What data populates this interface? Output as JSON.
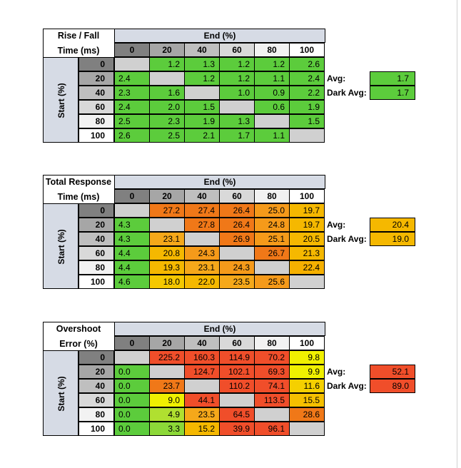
{
  "colors": {
    "header_blue": "#d6dbe5",
    "diagonal_gray": "#d0d0d0",
    "green": "#5ccc3c",
    "yellow_green": "#b0e030",
    "yellow": "#f0f000",
    "gold": "#f5b800",
    "orange": "#f59a1a",
    "dark_orange": "#f07818",
    "red_orange": "#f04e2a"
  },
  "chart_data": [
    {
      "type": "table",
      "title_line1": "Rise / Fall",
      "title_line2": "Time (ms)",
      "col_header": "End (%)",
      "row_header": "Start (%)",
      "columns": [
        "0",
        "20",
        "40",
        "60",
        "80",
        "100"
      ],
      "rows": [
        "0",
        "20",
        "40",
        "60",
        "80",
        "100"
      ],
      "values": [
        [
          "",
          "1.2",
          "1.3",
          "1.2",
          "1.2",
          "2.6"
        ],
        [
          "2.4",
          "",
          "1.2",
          "1.2",
          "1.1",
          "2.4"
        ],
        [
          "2.3",
          "1.6",
          "",
          "1.0",
          "0.9",
          "2.2"
        ],
        [
          "2.4",
          "2.0",
          "1.5",
          "",
          "0.6",
          "1.9"
        ],
        [
          "2.5",
          "2.3",
          "1.9",
          "1.3",
          "",
          "1.5"
        ],
        [
          "2.6",
          "2.5",
          "2.1",
          "1.7",
          "1.1",
          ""
        ]
      ],
      "cell_colors": [
        [
          "#d0d0d0",
          "#5ccc3c",
          "#5ccc3c",
          "#5ccc3c",
          "#5ccc3c",
          "#5ccc3c"
        ],
        [
          "#5ccc3c",
          "#d0d0d0",
          "#5ccc3c",
          "#5ccc3c",
          "#5ccc3c",
          "#5ccc3c"
        ],
        [
          "#5ccc3c",
          "#5ccc3c",
          "#d0d0d0",
          "#5ccc3c",
          "#5ccc3c",
          "#5ccc3c"
        ],
        [
          "#5ccc3c",
          "#5ccc3c",
          "#5ccc3c",
          "#d0d0d0",
          "#5ccc3c",
          "#5ccc3c"
        ],
        [
          "#5ccc3c",
          "#5ccc3c",
          "#5ccc3c",
          "#5ccc3c",
          "#d0d0d0",
          "#5ccc3c"
        ],
        [
          "#5ccc3c",
          "#5ccc3c",
          "#5ccc3c",
          "#5ccc3c",
          "#5ccc3c",
          "#d0d0d0"
        ]
      ],
      "avg_label": "Avg:",
      "avg_value": "1.7",
      "avg_color": "#5ccc3c",
      "dark_avg_label": "Dark Avg:",
      "dark_avg_value": "1.7",
      "dark_avg_color": "#5ccc3c"
    },
    {
      "type": "table",
      "title_line1": "Total Response",
      "title_line2": "Time (ms)",
      "col_header": "End (%)",
      "row_header": "Start (%)",
      "columns": [
        "0",
        "20",
        "40",
        "60",
        "80",
        "100"
      ],
      "rows": [
        "0",
        "20",
        "40",
        "60",
        "80",
        "100"
      ],
      "values": [
        [
          "",
          "27.2",
          "27.4",
          "26.4",
          "25.0",
          "19.7"
        ],
        [
          "4.3",
          "",
          "27.8",
          "26.4",
          "24.8",
          "19.7"
        ],
        [
          "4.3",
          "23.1",
          "",
          "26.9",
          "25.1",
          "20.5"
        ],
        [
          "4.4",
          "20.8",
          "24.3",
          "",
          "26.7",
          "21.3"
        ],
        [
          "4.4",
          "19.3",
          "23.1",
          "24.3",
          "",
          "22.4"
        ],
        [
          "4.6",
          "18.0",
          "22.0",
          "23.5",
          "25.6",
          ""
        ]
      ],
      "cell_colors": [
        [
          "#d0d0d0",
          "#f07818",
          "#f07818",
          "#f07818",
          "#f59a1a",
          "#f5b800"
        ],
        [
          "#5ccc3c",
          "#d0d0d0",
          "#f07818",
          "#f07818",
          "#f59a1a",
          "#f5b800"
        ],
        [
          "#5ccc3c",
          "#f5a81a",
          "#d0d0d0",
          "#f07818",
          "#f59a1a",
          "#f5b800"
        ],
        [
          "#5ccc3c",
          "#f5b800",
          "#f59a1a",
          "#d0d0d0",
          "#f07818",
          "#f5b800"
        ],
        [
          "#5ccc3c",
          "#f5b800",
          "#f5a81a",
          "#f59a1a",
          "#d0d0d0",
          "#f5b000"
        ],
        [
          "#5ccc3c",
          "#f5c800",
          "#f5b800",
          "#f5a81a",
          "#f59a1a",
          "#d0d0d0"
        ]
      ],
      "avg_label": "Avg:",
      "avg_value": "20.4",
      "avg_color": "#f5b800",
      "dark_avg_label": "Dark Avg:",
      "dark_avg_value": "19.0",
      "dark_avg_color": "#f5b800"
    },
    {
      "type": "table",
      "title_line1": "Overshoot",
      "title_line2": "Error (%)",
      "col_header": "End (%)",
      "row_header": "Start (%)",
      "columns": [
        "0",
        "20",
        "40",
        "60",
        "80",
        "100"
      ],
      "rows": [
        "0",
        "20",
        "40",
        "60",
        "80",
        "100"
      ],
      "values": [
        [
          "",
          "225.2",
          "160.3",
          "114.9",
          "70.2",
          "9.8"
        ],
        [
          "0.0",
          "",
          "124.7",
          "102.1",
          "69.3",
          "9.9"
        ],
        [
          "0.0",
          "23.7",
          "",
          "110.2",
          "74.1",
          "11.6"
        ],
        [
          "0.0",
          "9.0",
          "44.1",
          "",
          "113.5",
          "15.5"
        ],
        [
          "0.0",
          "4.9",
          "23.5",
          "64.5",
          "",
          "28.6"
        ],
        [
          "0.0",
          "3.3",
          "15.2",
          "39.9",
          "96.1",
          ""
        ]
      ],
      "cell_colors": [
        [
          "#d0d0d0",
          "#f04e2a",
          "#f04e2a",
          "#f04e2a",
          "#f04e2a",
          "#f0f000"
        ],
        [
          "#5ccc3c",
          "#d0d0d0",
          "#f04e2a",
          "#f04e2a",
          "#f04e2a",
          "#f0f000"
        ],
        [
          "#5ccc3c",
          "#f07818",
          "#d0d0d0",
          "#f04e2a",
          "#f04e2a",
          "#f5d000"
        ],
        [
          "#5ccc3c",
          "#f0f000",
          "#f04e2a",
          "#d0d0d0",
          "#f04e2a",
          "#f5c000"
        ],
        [
          "#5ccc3c",
          "#b0e030",
          "#f5a81a",
          "#f04e2a",
          "#d0d0d0",
          "#f07818"
        ],
        [
          "#5ccc3c",
          "#8cd838",
          "#f5b800",
          "#f04e2a",
          "#f04e2a",
          "#d0d0d0"
        ]
      ],
      "avg_label": "Avg:",
      "avg_value": "52.1",
      "avg_color": "#f04e2a",
      "dark_avg_label": "Dark Avg:",
      "dark_avg_value": "89.0",
      "dark_avg_color": "#f04e2a"
    }
  ]
}
